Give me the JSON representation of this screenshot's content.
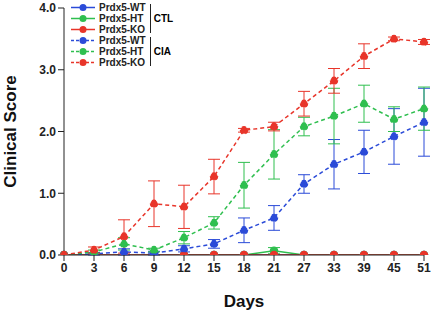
{
  "chart_data": {
    "type": "line",
    "x_label": "Days",
    "y_label": "Clinical Score",
    "categories": [
      "0",
      "3",
      "6",
      "9",
      "12",
      "15",
      "18",
      "21",
      "27",
      "33",
      "39",
      "45",
      "51"
    ],
    "ylim": [
      0,
      4
    ],
    "yticks": [
      {
        "value": 0,
        "label": "0.0"
      },
      {
        "value": 1,
        "label": "1.0"
      },
      {
        "value": 2,
        "label": "2.0"
      },
      {
        "value": 3,
        "label": "3.0"
      },
      {
        "value": 4,
        "label": "4.0"
      }
    ],
    "grid": false,
    "legend": "upper left",
    "series": [
      {
        "name": "Prdx5-WT",
        "group": "CTL",
        "color": "#2b4bd8",
        "line_style": "solid",
        "marker": "circle",
        "values": [
          0,
          0,
          0,
          0,
          0,
          0,
          0,
          0,
          0,
          0,
          0,
          0,
          0
        ],
        "errors": [
          0,
          0,
          0,
          0,
          0,
          0,
          0,
          0,
          0,
          0,
          0,
          0,
          0
        ]
      },
      {
        "name": "Prdx5-HT",
        "group": "CTL",
        "color": "#2fbf4f",
        "line_style": "solid",
        "marker": "circle",
        "values": [
          0,
          0,
          0,
          0,
          0,
          0,
          0,
          0.07,
          0,
          0,
          0,
          0,
          0
        ],
        "errors": [
          0,
          0,
          0,
          0,
          0,
          0,
          0,
          0.05,
          0,
          0,
          0,
          0,
          0
        ]
      },
      {
        "name": "Prdx5-KO",
        "group": "CTL",
        "color": "#e8352a",
        "line_style": "solid",
        "marker": "circle",
        "values": [
          0,
          0,
          0,
          0,
          0,
          0,
          0,
          0,
          0,
          0,
          0,
          0,
          0
        ],
        "errors": [
          0,
          0,
          0,
          0,
          0,
          0,
          0,
          0,
          0,
          0,
          0,
          0,
          0
        ]
      },
      {
        "name": "Prdx5-WT",
        "group": "CIA",
        "color": "#2b4bd8",
        "line_style": "dashed",
        "marker": "circle",
        "values": [
          0,
          0.02,
          0.05,
          0.03,
          0.1,
          0.18,
          0.4,
          0.6,
          1.15,
          1.47,
          1.67,
          1.92,
          2.15
        ],
        "errors": [
          0,
          0.02,
          0.05,
          0.03,
          0.05,
          0.07,
          0.2,
          0.2,
          0.15,
          0.4,
          0.35,
          0.45,
          0.55
        ]
      },
      {
        "name": "Prdx5-HT",
        "group": "CIA",
        "color": "#2fbf4f",
        "line_style": "dashed",
        "marker": "circle",
        "values": [
          0,
          0.05,
          0.18,
          0.08,
          0.28,
          0.52,
          1.13,
          1.63,
          2.08,
          2.25,
          2.45,
          2.2,
          2.37
        ],
        "errors": [
          0,
          0.03,
          0.1,
          0.03,
          0.1,
          0.1,
          0.37,
          0.4,
          0.15,
          0.45,
          0.3,
          0.2,
          0.35
        ]
      },
      {
        "name": "Prdx5-KO",
        "group": "CIA",
        "color": "#e8352a",
        "line_style": "dashed",
        "marker": "circle",
        "values": [
          0,
          0.08,
          0.3,
          0.83,
          0.78,
          1.27,
          2.02,
          2.08,
          2.45,
          2.82,
          3.22,
          3.5,
          3.45
        ],
        "errors": [
          0,
          0.05,
          0.27,
          0.37,
          0.35,
          0.28,
          0.03,
          0.07,
          0.2,
          0.2,
          0.2,
          0.03,
          0.04
        ]
      }
    ]
  }
}
